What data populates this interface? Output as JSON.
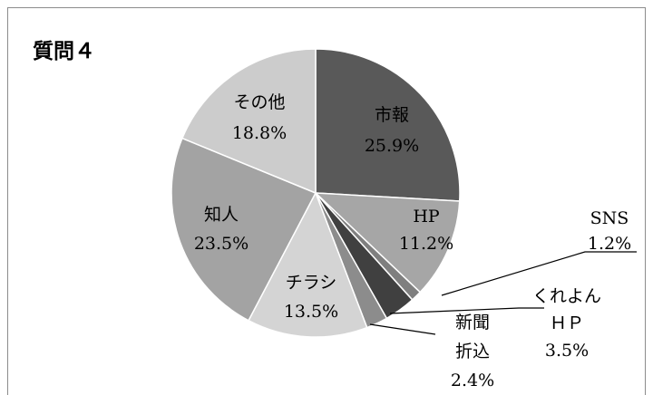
{
  "chart_data": {
    "type": "pie",
    "title": "質問４",
    "categories": [
      "市報",
      "HP",
      "SNS",
      "くれよん\nＨＰ",
      "新聞\n折込",
      "チラシ",
      "知人",
      "その他"
    ],
    "values": [
      25.9,
      11.2,
      1.2,
      3.5,
      2.4,
      13.5,
      23.5,
      18.8
    ],
    "value_labels": [
      "25.9%",
      "11.2%",
      "1.2%",
      "3.5%",
      "2.4%",
      "13.5%",
      "23.5%",
      "18.8%"
    ],
    "colors": [
      "#595959",
      "#a6a6a6",
      "#7f7f7f",
      "#404040",
      "#8c8c8c",
      "#d4d4d4",
      "#a3a3a3",
      "#cccccc"
    ]
  }
}
